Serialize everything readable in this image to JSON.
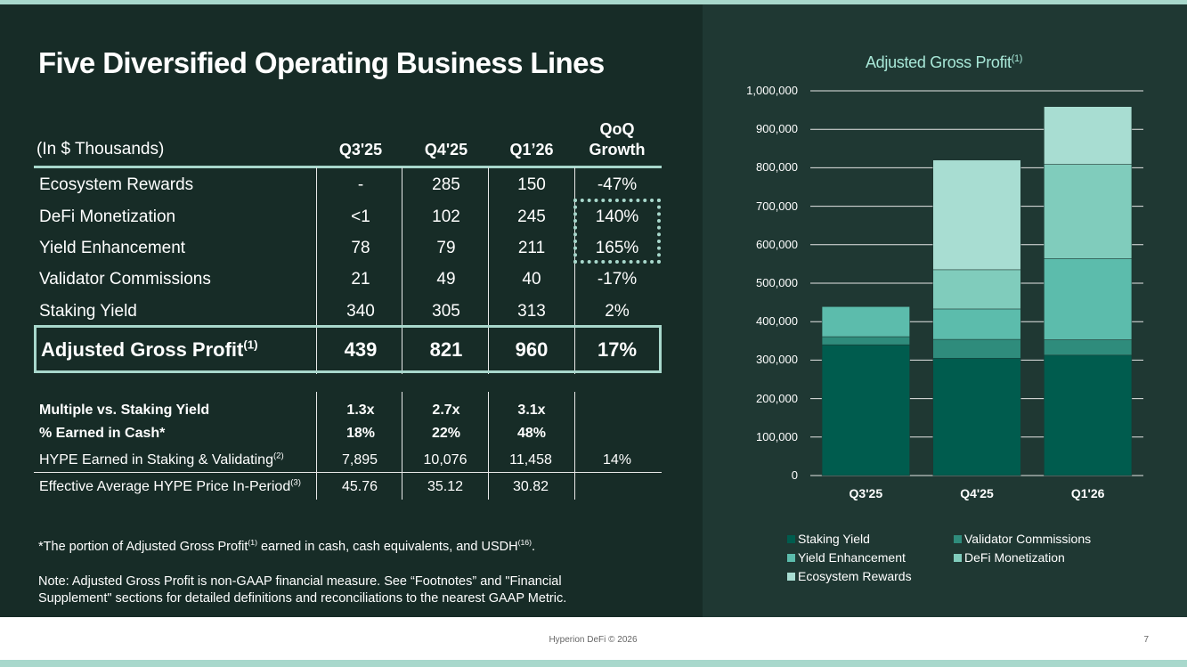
{
  "title": "Five Diversified Operating Business Lines",
  "table": {
    "unit_label": "(In $ Thousands)",
    "headers": [
      "Q3'25",
      "Q4'25",
      "Q1’26"
    ],
    "growth_header_1": "QoQ",
    "growth_header_2": "Growth",
    "rows": [
      {
        "label": "Ecosystem Rewards",
        "values": [
          "-",
          "285",
          "150",
          "-47%"
        ]
      },
      {
        "label": "DeFi Monetization",
        "values": [
          "<1",
          "102",
          "245",
          "140%"
        ]
      },
      {
        "label": "Yield Enhancement",
        "values": [
          "78",
          "79",
          "211",
          "165%"
        ]
      },
      {
        "label": "Validator Commissions",
        "values": [
          "21",
          "49",
          "40",
          "-17%"
        ]
      },
      {
        "label": "Staking Yield",
        "values": [
          "340",
          "305",
          "313",
          "2%"
        ]
      }
    ],
    "total": {
      "label": "Adjusted Gross Profit",
      "footnote": "(1)",
      "values": [
        "439",
        "821",
        "960",
        "17%"
      ]
    },
    "metrics": [
      {
        "label": "Multiple vs. Staking Yield",
        "values": [
          "1.3x",
          "2.7x",
          "3.1x"
        ]
      },
      {
        "label": "% Earned in Cash*",
        "values": [
          "18%",
          "22%",
          "48%"
        ]
      }
    ],
    "hype_row": {
      "label": "HYPE Earned in Staking & Validating",
      "footnote": "(2)",
      "values": [
        "7,895",
        "10,076",
        "11,458",
        "14%"
      ]
    },
    "price_row": {
      "label": "Effective Average HYPE Price In-Period",
      "footnote": "(3)",
      "values": [
        "45.76",
        "35.12",
        "30.82"
      ]
    }
  },
  "notes": {
    "cash_note_a": "*The portion of Adjusted Gross Profit",
    "cash_note_sup1": "(1)",
    "cash_note_b": " earned in cash, cash equivalents, and USDH",
    "cash_note_sup2": "(16)",
    "cash_note_c": ".",
    "gaap_line1": "Note: Adjusted Gross Profit is non-GAAP financial measure. See “Footnotes” and \"Financial",
    "gaap_line2": "Supplement\" sections for detailed definitions and reconciliations to the nearest GAAP Metric."
  },
  "chart_data": {
    "type": "bar",
    "stacked": true,
    "title": "Adjusted Gross Profit",
    "title_footnote": "(1)",
    "categories": [
      "Q3'25",
      "Q4'25",
      "Q1'26"
    ],
    "ylim": [
      0,
      1000000
    ],
    "y_ticks": [
      "0",
      "100,000",
      "200,000",
      "300,000",
      "400,000",
      "500,000",
      "600,000",
      "700,000",
      "800,000",
      "900,000",
      "1,000,000"
    ],
    "grid": true,
    "legend_position": "bottom",
    "series": [
      {
        "name": "Staking Yield",
        "color": "#005c4e",
        "values": [
          340000,
          305000,
          313000
        ]
      },
      {
        "name": "Validator Commissions",
        "color": "#2f8c7c",
        "values": [
          21000,
          49000,
          40000
        ]
      },
      {
        "name": "Yield Enhancement",
        "color": "#5cbcac",
        "values": [
          78000,
          79000,
          211000
        ]
      },
      {
        "name": "DeFi Monetization",
        "color": "#80ccbc",
        "values": [
          0,
          102000,
          245000
        ]
      },
      {
        "name": "Ecosystem Rewards",
        "color": "#a8ddd2",
        "values": [
          0,
          285000,
          150000
        ]
      }
    ]
  },
  "footer": {
    "text": "Hyperion DeFi © 2026",
    "page": "7"
  },
  "colors": {
    "background": "#172c27",
    "chart_panel": "#1f3833",
    "accent": "#a8d8cc"
  }
}
